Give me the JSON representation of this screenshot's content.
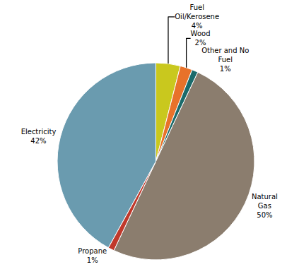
{
  "chart_data": {
    "type": "pie",
    "categories": [
      "Fuel\nOil/Kerosene",
      "Wood",
      "Other and No\nFuel",
      "Natural\nGas",
      "Propane",
      "Electricity"
    ],
    "values": [
      4,
      2,
      1,
      50,
      1,
      42
    ],
    "value_labels": [
      "4%",
      "2%",
      "1%",
      "50%",
      "1%",
      "42%"
    ],
    "colors": [
      "#C9C81E",
      "#E8722A",
      "#1B6B6B",
      "#8B7D6E",
      "#C0392B",
      "#6A9BAF"
    ],
    "data_labels": true
  }
}
